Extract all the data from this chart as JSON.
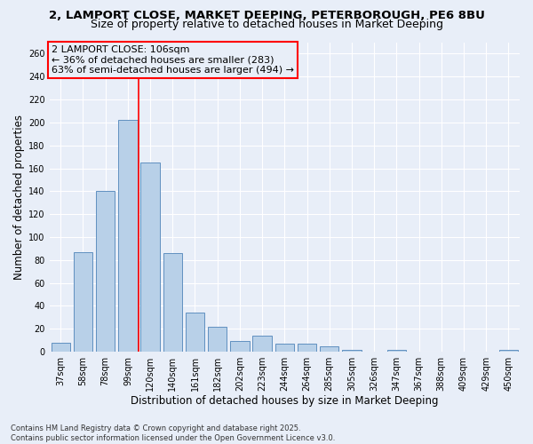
{
  "title_line1": "2, LAMPORT CLOSE, MARKET DEEPING, PETERBOROUGH, PE6 8BU",
  "title_line2": "Size of property relative to detached houses in Market Deeping",
  "xlabel": "Distribution of detached houses by size in Market Deeping",
  "ylabel": "Number of detached properties",
  "categories": [
    "37sqm",
    "58sqm",
    "78sqm",
    "99sqm",
    "120sqm",
    "140sqm",
    "161sqm",
    "182sqm",
    "202sqm",
    "223sqm",
    "244sqm",
    "264sqm",
    "285sqm",
    "305sqm",
    "326sqm",
    "347sqm",
    "367sqm",
    "388sqm",
    "409sqm",
    "429sqm",
    "450sqm"
  ],
  "values": [
    8,
    87,
    140,
    202,
    165,
    86,
    34,
    22,
    9,
    14,
    7,
    7,
    5,
    2,
    0,
    2,
    0,
    0,
    0,
    0,
    2
  ],
  "bar_color": "#b8d0e8",
  "bar_edge_color": "#6090c0",
  "vline_x": 3.5,
  "vline_color": "red",
  "annotation_text": "2 LAMPORT CLOSE: 106sqm\n← 36% of detached houses are smaller (283)\n63% of semi-detached houses are larger (494) →",
  "ylim": [
    0,
    270
  ],
  "yticks": [
    0,
    20,
    40,
    60,
    80,
    100,
    120,
    140,
    160,
    180,
    200,
    220,
    240,
    260
  ],
  "bg_color": "#e8eef8",
  "grid_color": "#ffffff",
  "footer_text": "Contains HM Land Registry data © Crown copyright and database right 2025.\nContains public sector information licensed under the Open Government Licence v3.0.",
  "title_fontsize": 9.5,
  "subtitle_fontsize": 9.0,
  "xlabel_fontsize": 8.5,
  "ylabel_fontsize": 8.5,
  "tick_fontsize": 7.0,
  "annotation_fontsize": 8.0,
  "footer_fontsize": 6.0
}
